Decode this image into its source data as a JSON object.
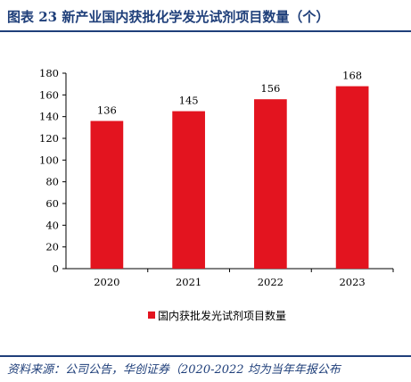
{
  "figure": {
    "title": "图表 23 新产业国内获批化学发光试剂项目数量（个）",
    "source": "资料来源：公司公告，华创证券（2020-2022 均为当年年报公布"
  },
  "colors": {
    "bar": "#e3141f",
    "title": "#1f3f7a",
    "axis": "#000000"
  },
  "chart_data": {
    "type": "bar",
    "title": "",
    "xlabel": "",
    "ylabel": "",
    "categories": [
      "2020",
      "2021",
      "2022",
      "2023"
    ],
    "series": [
      {
        "name": "国内获批发光试剂项目数量",
        "values": [
          136,
          145,
          156,
          168
        ]
      }
    ],
    "ylim": [
      0,
      180
    ],
    "yticks": [
      0,
      20,
      40,
      60,
      80,
      100,
      120,
      140,
      160,
      180
    ],
    "data_labels": [
      "136",
      "145",
      "156",
      "168"
    ],
    "grid": false,
    "legend_position": "bottom"
  }
}
